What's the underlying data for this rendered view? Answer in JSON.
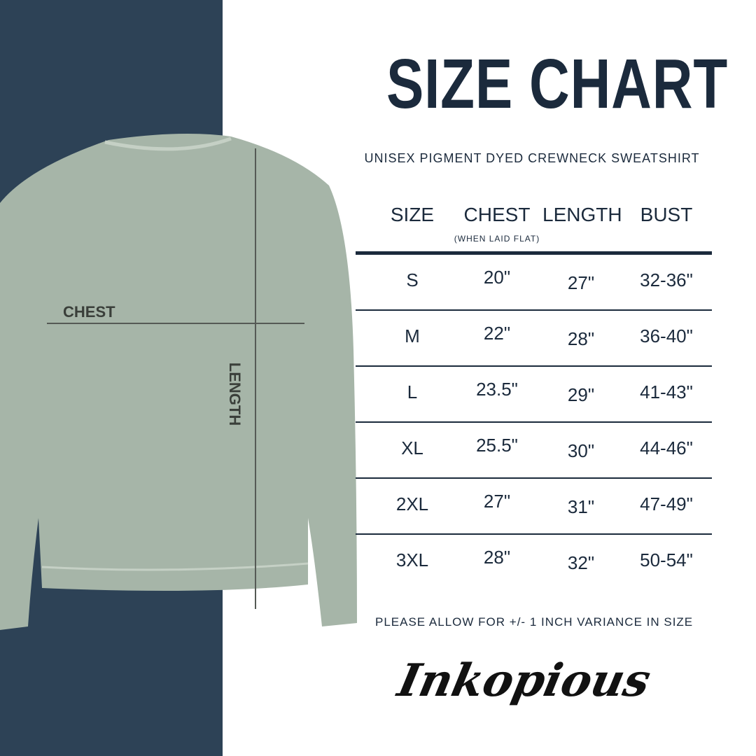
{
  "title": "SIZE CHART",
  "subtitle": "UNISEX PIGMENT DYED CREWNECK SWEATSHIRT",
  "colors": {
    "navy": "#2d4256",
    "text": "#1b2a3c",
    "garment": "#a6b5a8"
  },
  "garment_labels": {
    "chest": "CHEST",
    "length": "LENGTH"
  },
  "table": {
    "headers": [
      "SIZE",
      "CHEST",
      "LENGTH",
      "BUST"
    ],
    "chest_note": "(WHEN LAID FLAT)",
    "rows": [
      [
        "S",
        "20\"",
        "27\"",
        "32-36\""
      ],
      [
        "M",
        "22\"",
        "28\"",
        "36-40\""
      ],
      [
        "L",
        "23.5\"",
        "29\"",
        "41-43\""
      ],
      [
        "XL",
        "25.5\"",
        "30\"",
        "44-46\""
      ],
      [
        "2XL",
        "27\"",
        "31\"",
        "47-49\""
      ],
      [
        "3XL",
        "28\"",
        "32\"",
        "50-54\""
      ]
    ]
  },
  "note": "PLEASE ALLOW FOR +/- 1 INCH VARIANCE IN SIZE",
  "brand": "Inkopious"
}
